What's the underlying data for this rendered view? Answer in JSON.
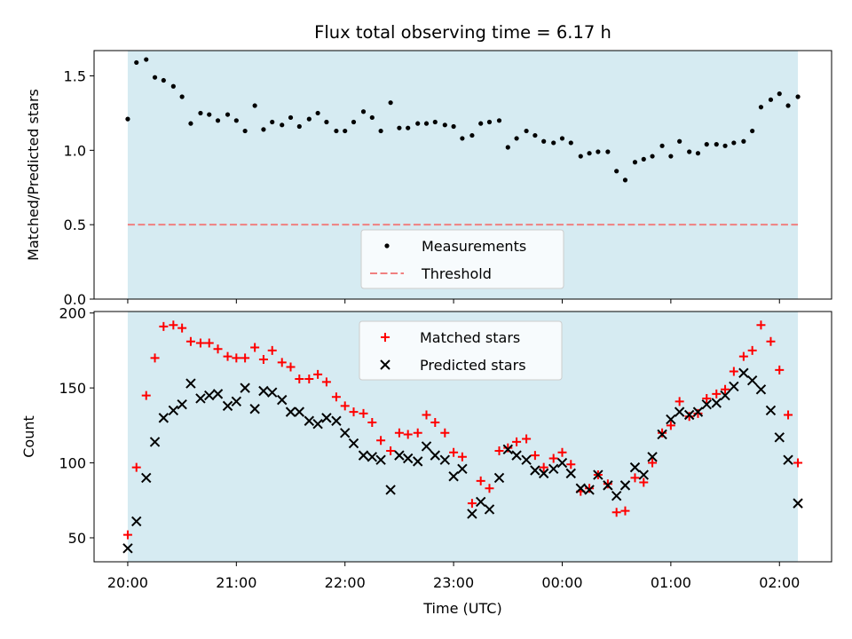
{
  "title": "Flux total observing time = 6.17 h",
  "xlabel": "Time (UTC)",
  "x_tick_labels": [
    "20:00",
    "21:00",
    "22:00",
    "23:00",
    "00:00",
    "01:00",
    "02:00"
  ],
  "colors": {
    "observing_span": "#add8e6",
    "threshold": "#f08080",
    "measurements": "#000000",
    "matched": "#ff0000",
    "predicted": "#000000"
  },
  "chart_data": [
    {
      "type": "scatter",
      "ylabel": "Matched/Predicted stars",
      "ylim": [
        0,
        1.67
      ],
      "xlim_hours": [
        19.69,
        26.48
      ],
      "y_ticks": [
        "0.0",
        "0.5",
        "1.0",
        "1.5"
      ],
      "observing_span_hours": [
        20.0,
        26.17
      ],
      "threshold": 0.5,
      "legend": {
        "position": "lower center",
        "entries": [
          "Measurements",
          "Threshold"
        ]
      },
      "series": [
        {
          "name": "Measurements",
          "marker": "dot",
          "x_hours": [
            20.0,
            20.08,
            20.17,
            20.25,
            20.33,
            20.42,
            20.5,
            20.58,
            20.67,
            20.75,
            20.83,
            20.92,
            21.0,
            21.08,
            21.17,
            21.25,
            21.33,
            21.42,
            21.5,
            21.58,
            21.67,
            21.75,
            21.83,
            21.92,
            22.0,
            22.08,
            22.17,
            22.25,
            22.33,
            22.42,
            22.5,
            22.58,
            22.67,
            22.75,
            22.83,
            22.92,
            23.0,
            23.08,
            23.17,
            23.25,
            23.33,
            23.42,
            23.5,
            23.58,
            23.67,
            23.75,
            23.83,
            23.92,
            24.0,
            24.08,
            24.17,
            24.25,
            24.33,
            24.42,
            24.5,
            24.58,
            24.67,
            24.75,
            24.83,
            24.92,
            25.0,
            25.08,
            25.17,
            25.25,
            25.33,
            25.42,
            25.5,
            25.58,
            25.67,
            25.75,
            25.83,
            25.92,
            26.0,
            26.08,
            26.17
          ],
          "y": [
            1.21,
            1.59,
            1.61,
            1.49,
            1.47,
            1.43,
            1.36,
            1.18,
            1.25,
            1.24,
            1.2,
            1.24,
            1.2,
            1.13,
            1.3,
            1.14,
            1.19,
            1.17,
            1.22,
            1.16,
            1.21,
            1.25,
            1.19,
            1.13,
            1.13,
            1.19,
            1.26,
            1.22,
            1.13,
            1.32,
            1.15,
            1.15,
            1.18,
            1.18,
            1.19,
            1.17,
            1.16,
            1.08,
            1.1,
            1.18,
            1.19,
            1.2,
            1.02,
            1.08,
            1.13,
            1.1,
            1.06,
            1.05,
            1.08,
            1.05,
            0.96,
            0.98,
            0.99,
            0.99,
            0.86,
            0.8,
            0.92,
            0.94,
            0.96,
            1.03,
            0.96,
            1.06,
            0.99,
            0.98,
            1.04,
            1.04,
            1.03,
            1.05,
            1.06,
            1.13,
            1.29,
            1.34,
            1.38,
            1.3,
            1.36
          ]
        }
      ]
    },
    {
      "type": "scatter",
      "ylabel": "Count",
      "ylim": [
        34,
        201
      ],
      "xlim_hours": [
        19.69,
        26.48
      ],
      "y_ticks": [
        "50",
        "100",
        "150",
        "200"
      ],
      "observing_span_hours": [
        20.0,
        26.17
      ],
      "legend": {
        "position": "upper center",
        "entries": [
          "Matched stars",
          "Predicted stars"
        ]
      },
      "series": [
        {
          "name": "Matched stars",
          "marker": "plus",
          "x_hours": [
            20.0,
            20.08,
            20.17,
            20.25,
            20.33,
            20.42,
            20.5,
            20.58,
            20.67,
            20.75,
            20.83,
            20.92,
            21.0,
            21.08,
            21.17,
            21.25,
            21.33,
            21.42,
            21.5,
            21.58,
            21.67,
            21.75,
            21.83,
            21.92,
            22.0,
            22.08,
            22.17,
            22.25,
            22.33,
            22.42,
            22.5,
            22.58,
            22.67,
            22.75,
            22.83,
            22.92,
            23.0,
            23.08,
            23.17,
            23.25,
            23.33,
            23.42,
            23.5,
            23.58,
            23.67,
            23.75,
            23.83,
            23.92,
            24.0,
            24.08,
            24.17,
            24.25,
            24.33,
            24.42,
            24.5,
            24.58,
            24.67,
            24.75,
            24.83,
            24.92,
            25.0,
            25.08,
            25.17,
            25.25,
            25.33,
            25.42,
            25.5,
            25.58,
            25.67,
            25.75,
            25.83,
            25.92,
            26.0,
            26.08,
            26.17
          ],
          "y": [
            52,
            97,
            145,
            170,
            191,
            192,
            190,
            181,
            180,
            180,
            176,
            171,
            170,
            170,
            177,
            169,
            175,
            167,
            164,
            156,
            156,
            159,
            154,
            144,
            138,
            134,
            133,
            127,
            115,
            108,
            120,
            119,
            120,
            132,
            127,
            120,
            107,
            104,
            73,
            88,
            83,
            108,
            110,
            114,
            116,
            105,
            97,
            103,
            107,
            99,
            81,
            83,
            92,
            86,
            67,
            68,
            90,
            87,
            100,
            120,
            125,
            141,
            131,
            133,
            143,
            146,
            149,
            161,
            171,
            175,
            192,
            181,
            162,
            132,
            100
          ]
        },
        {
          "name": "Predicted stars",
          "marker": "x",
          "x_hours": [
            20.0,
            20.08,
            20.17,
            20.25,
            20.33,
            20.42,
            20.5,
            20.58,
            20.67,
            20.75,
            20.83,
            20.92,
            21.0,
            21.08,
            21.17,
            21.25,
            21.33,
            21.42,
            21.5,
            21.58,
            21.67,
            21.75,
            21.83,
            21.92,
            22.0,
            22.08,
            22.17,
            22.25,
            22.33,
            22.42,
            22.5,
            22.58,
            22.67,
            22.75,
            22.83,
            22.92,
            23.0,
            23.08,
            23.17,
            23.25,
            23.33,
            23.42,
            23.5,
            23.58,
            23.67,
            23.75,
            23.83,
            23.92,
            24.0,
            24.08,
            24.17,
            24.25,
            24.33,
            24.42,
            24.5,
            24.58,
            24.67,
            24.75,
            24.83,
            24.92,
            25.0,
            25.08,
            25.17,
            25.25,
            25.33,
            25.42,
            25.5,
            25.58,
            25.67,
            25.75,
            25.83,
            25.92,
            26.0,
            26.08,
            26.17
          ],
          "y": [
            43,
            61,
            90,
            114,
            130,
            135,
            139,
            153,
            143,
            145,
            146,
            138,
            141,
            150,
            136,
            148,
            147,
            142,
            134,
            134,
            128,
            126,
            130,
            128,
            120,
            113,
            105,
            104,
            102,
            82,
            105,
            103,
            101,
            111,
            105,
            102,
            91,
            96,
            66,
            74,
            69,
            90,
            109,
            105,
            102,
            95,
            93,
            96,
            100,
            93,
            83,
            82,
            92,
            85,
            78,
            85,
            97,
            92,
            104,
            119,
            129,
            134,
            132,
            134,
            139,
            140,
            145,
            151,
            160,
            155,
            149,
            135,
            117,
            102,
            73
          ]
        }
      ]
    }
  ]
}
